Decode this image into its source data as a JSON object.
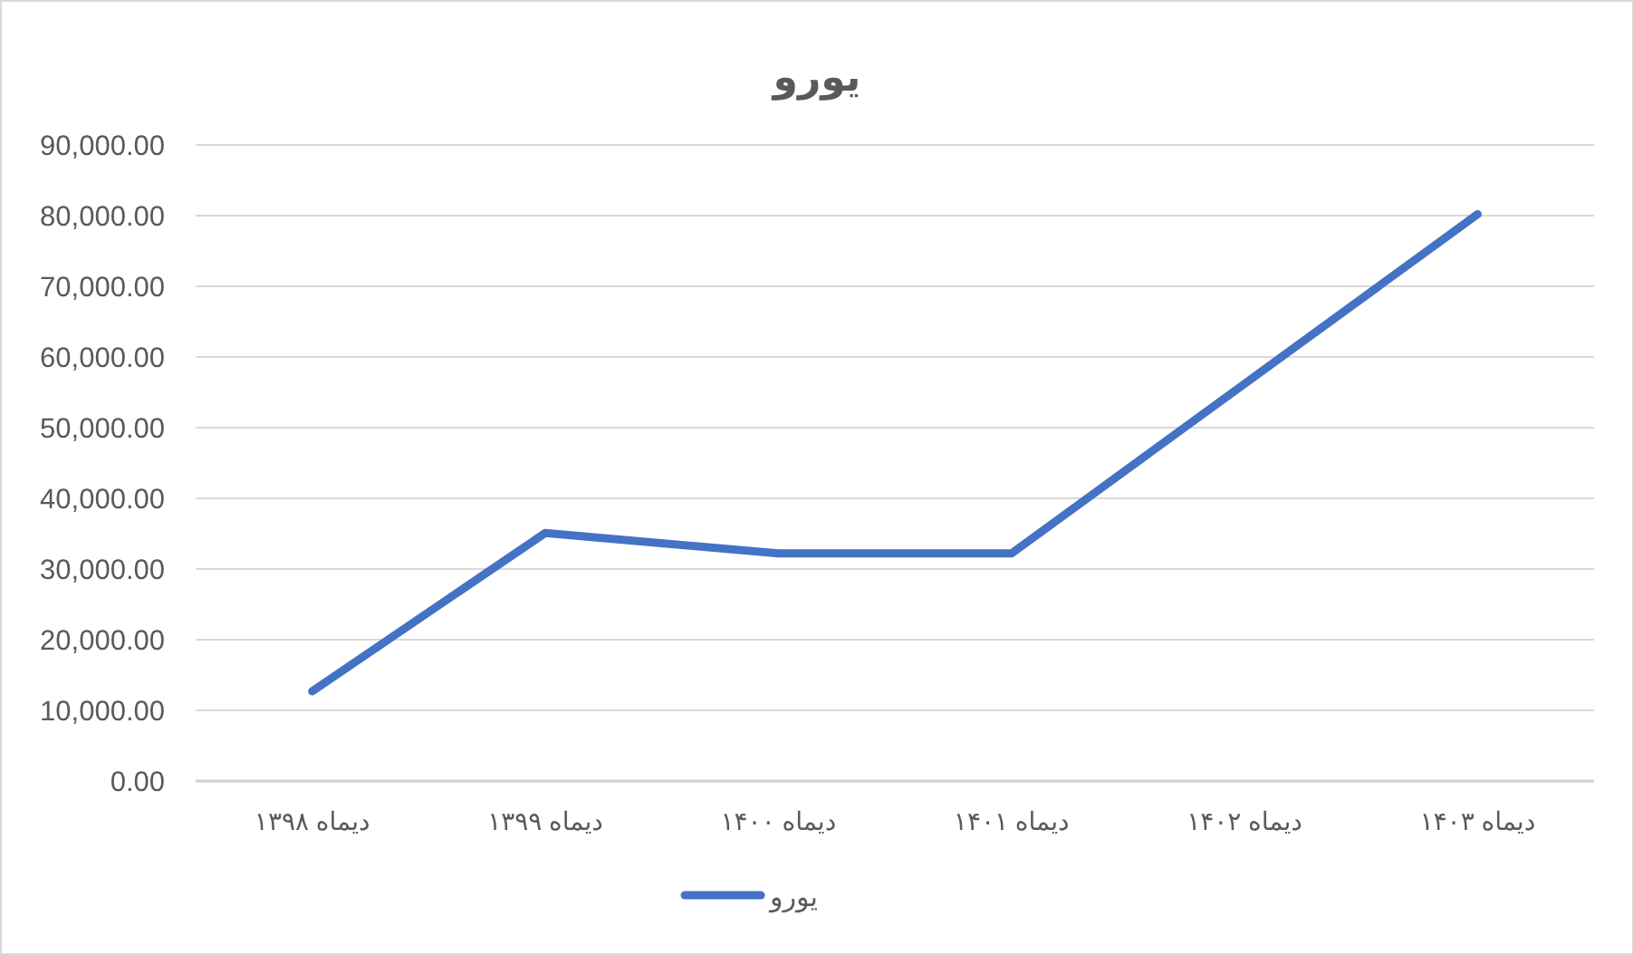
{
  "chart_data": {
    "type": "line",
    "title": "یورو",
    "categories": [
      "دیماه ۱۳۹۸",
      "دیماه ۱۳۹۹",
      "دیماه ۱۴۰۰",
      "دیماه ۱۴۰۱",
      "دیماه ۱۴۰۲",
      "دیماه ۱۴۰۳"
    ],
    "series": [
      {
        "name": "یورو",
        "color": "#4472c4",
        "values": [
          12700,
          35100,
          32200,
          32200,
          56200,
          80200
        ]
      }
    ],
    "ylim": [
      0,
      90000
    ],
    "yticks": [
      {
        "value": 0,
        "label": "0.00"
      },
      {
        "value": 10000,
        "label": "10,000.00"
      },
      {
        "value": 20000,
        "label": "20,000.00"
      },
      {
        "value": 30000,
        "label": "30,000.00"
      },
      {
        "value": 40000,
        "label": "40,000.00"
      },
      {
        "value": 50000,
        "label": "50,000.00"
      },
      {
        "value": 60000,
        "label": "60,000.00"
      },
      {
        "value": 70000,
        "label": "70,000.00"
      },
      {
        "value": 80000,
        "label": "80,000.00"
      },
      {
        "value": 90000,
        "label": "90,000.00"
      }
    ],
    "grid": "y",
    "legend": "bottom",
    "marker": "none",
    "line_style": "solid"
  }
}
